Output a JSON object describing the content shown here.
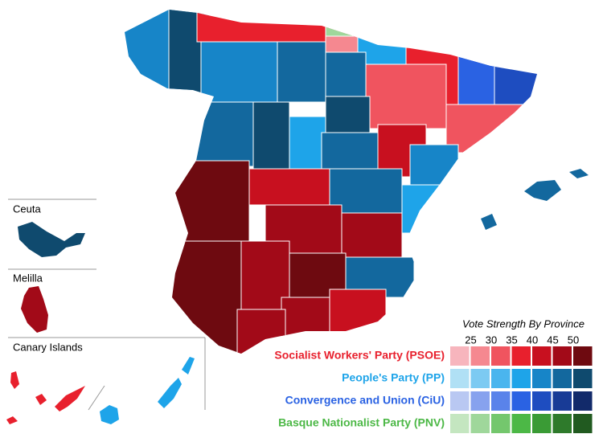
{
  "insets": [
    {
      "label": "Ceuta"
    },
    {
      "label": "Melilla"
    },
    {
      "label": "Canary Islands"
    }
  ],
  "legend": {
    "title": "Vote Strength By Province",
    "ticks": [
      25,
      30,
      35,
      40,
      45,
      50
    ],
    "parties": [
      {
        "name": "Socialist Workers' Party (PSOE)",
        "color": "#e8202d",
        "swatches": [
          "#f7b5bd",
          "#f58890",
          "#f0545f",
          "#e8202d",
          "#c8101f",
          "#a20a18",
          "#6e0a10"
        ]
      },
      {
        "name": "People's Party (PP)",
        "color": "#1ea4e9",
        "swatches": [
          "#b0e0f5",
          "#7ccaf2",
          "#4ab5ee",
          "#1ea4e9",
          "#1785c8",
          "#13689e",
          "#0f4a6e"
        ]
      },
      {
        "name": "Convergence and Union (CiU)",
        "color": "#2a62e3",
        "swatches": [
          "#b9c8f2",
          "#87a2ee",
          "#5a83ea",
          "#2a62e3",
          "#1e4dc0",
          "#183b96",
          "#122a6a"
        ]
      },
      {
        "name": "Basque Nationalist Party (PNV)",
        "color": "#4cb846",
        "swatches": [
          "#c4e6c0",
          "#9fd79b",
          "#74c76d",
          "#4cb846",
          "#3a9b35",
          "#2e7a2b",
          "#215a20"
        ]
      }
    ]
  }
}
